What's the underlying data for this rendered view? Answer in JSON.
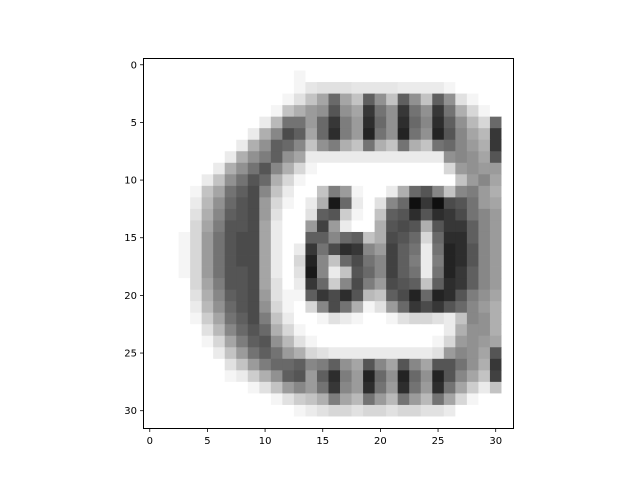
{
  "chart_data": {
    "type": "heatmap",
    "title": "",
    "xlabel": "",
    "ylabel": "",
    "xlim": [
      -0.5,
      31.5
    ],
    "ylim": [
      31.5,
      -0.5
    ],
    "x_ticks": [
      0,
      5,
      10,
      15,
      20,
      25,
      30
    ],
    "y_ticks": [
      0,
      5,
      10,
      15,
      20,
      25,
      30
    ],
    "colormap": "gray_r",
    "value_range": [
      0,
      255
    ],
    "grid": false,
    "values": [
      [
        0,
        0,
        0,
        0,
        0,
        0,
        0,
        0,
        0,
        0,
        0,
        0,
        0,
        0,
        0,
        0,
        0,
        0,
        0,
        0,
        0,
        0,
        0,
        0,
        0,
        0,
        0,
        0,
        0,
        0,
        0,
        0
      ],
      [
        0,
        0,
        0,
        0,
        0,
        0,
        0,
        0,
        0,
        0,
        0,
        0,
        0,
        10,
        0,
        0,
        0,
        0,
        0,
        0,
        0,
        0,
        0,
        0,
        0,
        0,
        0,
        0,
        0,
        0,
        0,
        0
      ],
      [
        0,
        0,
        0,
        0,
        0,
        0,
        0,
        0,
        0,
        0,
        0,
        0,
        0,
        10,
        25,
        30,
        30,
        30,
        25,
        25,
        25,
        25,
        20,
        20,
        20,
        20,
        10,
        0,
        0,
        0,
        0,
        0
      ],
      [
        0,
        0,
        0,
        0,
        0,
        0,
        0,
        0,
        0,
        0,
        0,
        0,
        10,
        30,
        60,
        90,
        150,
        90,
        60,
        160,
        110,
        60,
        160,
        110,
        60,
        160,
        110,
        30,
        10,
        0,
        0,
        0
      ],
      [
        0,
        0,
        0,
        0,
        0,
        0,
        0,
        0,
        0,
        0,
        0,
        10,
        60,
        80,
        100,
        110,
        170,
        110,
        90,
        200,
        140,
        110,
        200,
        140,
        110,
        200,
        140,
        80,
        40,
        10,
        0,
        0
      ],
      [
        0,
        0,
        0,
        0,
        0,
        0,
        0,
        0,
        0,
        0,
        20,
        70,
        140,
        140,
        100,
        150,
        200,
        130,
        100,
        210,
        150,
        110,
        210,
        150,
        120,
        210,
        160,
        110,
        70,
        40,
        150,
        0
      ],
      [
        0,
        0,
        0,
        0,
        0,
        0,
        0,
        0,
        0,
        20,
        80,
        120,
        180,
        160,
        90,
        150,
        210,
        130,
        100,
        220,
        140,
        110,
        220,
        140,
        110,
        220,
        170,
        120,
        90,
        70,
        200,
        0
      ],
      [
        0,
        0,
        0,
        0,
        0,
        0,
        0,
        0,
        20,
        80,
        110,
        160,
        150,
        120,
        60,
        110,
        130,
        80,
        60,
        140,
        80,
        60,
        140,
        80,
        60,
        140,
        150,
        120,
        100,
        80,
        200,
        0
      ],
      [
        0,
        0,
        0,
        0,
        0,
        0,
        0,
        20,
        80,
        110,
        130,
        160,
        110,
        90,
        20,
        20,
        20,
        20,
        20,
        20,
        20,
        20,
        20,
        20,
        20,
        20,
        110,
        120,
        110,
        90,
        170,
        0
      ],
      [
        0,
        0,
        0,
        0,
        0,
        0,
        20,
        80,
        110,
        140,
        170,
        120,
        80,
        40,
        10,
        0,
        0,
        0,
        0,
        0,
        0,
        0,
        0,
        0,
        0,
        0,
        40,
        100,
        110,
        100,
        100,
        0
      ],
      [
        0,
        0,
        0,
        0,
        0,
        20,
        60,
        110,
        140,
        170,
        150,
        80,
        40,
        10,
        0,
        0,
        0,
        0,
        0,
        0,
        0,
        0,
        0,
        0,
        0,
        0,
        0,
        60,
        100,
        120,
        90,
        0
      ],
      [
        0,
        0,
        0,
        0,
        10,
        60,
        90,
        140,
        160,
        180,
        120,
        60,
        20,
        0,
        0,
        60,
        130,
        100,
        10,
        0,
        0,
        20,
        80,
        150,
        170,
        120,
        60,
        120,
        130,
        100,
        80,
        0
      ],
      [
        0,
        0,
        0,
        0,
        20,
        70,
        110,
        150,
        170,
        180,
        100,
        40,
        10,
        0,
        20,
        80,
        230,
        150,
        20,
        0,
        30,
        120,
        150,
        240,
        200,
        240,
        180,
        170,
        140,
        100,
        90,
        0
      ],
      [
        0,
        0,
        0,
        0,
        30,
        80,
        120,
        160,
        170,
        180,
        100,
        30,
        0,
        0,
        30,
        160,
        170,
        50,
        10,
        0,
        60,
        160,
        170,
        210,
        170,
        210,
        200,
        180,
        140,
        120,
        100,
        0
      ],
      [
        0,
        0,
        0,
        0,
        40,
        90,
        130,
        170,
        170,
        180,
        90,
        20,
        0,
        0,
        100,
        190,
        100,
        20,
        0,
        0,
        80,
        170,
        180,
        170,
        80,
        170,
        200,
        200,
        160,
        120,
        100,
        0
      ],
      [
        0,
        0,
        0,
        10,
        40,
        100,
        140,
        170,
        180,
        180,
        90,
        20,
        0,
        0,
        160,
        160,
        120,
        150,
        160,
        60,
        80,
        180,
        170,
        150,
        40,
        150,
        210,
        210,
        160,
        120,
        100,
        0
      ],
      [
        0,
        0,
        0,
        10,
        40,
        100,
        140,
        170,
        180,
        180,
        90,
        20,
        0,
        20,
        200,
        140,
        180,
        210,
        200,
        120,
        100,
        190,
        160,
        140,
        20,
        140,
        220,
        210,
        170,
        120,
        100,
        0
      ],
      [
        0,
        0,
        0,
        10,
        40,
        100,
        140,
        170,
        180,
        180,
        90,
        20,
        0,
        40,
        220,
        120,
        60,
        150,
        180,
        140,
        120,
        190,
        160,
        130,
        20,
        130,
        220,
        210,
        170,
        120,
        100,
        0
      ],
      [
        0,
        0,
        0,
        10,
        40,
        100,
        140,
        170,
        170,
        180,
        90,
        20,
        0,
        30,
        230,
        120,
        20,
        60,
        170,
        150,
        120,
        190,
        160,
        140,
        20,
        140,
        220,
        200,
        160,
        120,
        100,
        0
      ],
      [
        0,
        0,
        0,
        0,
        40,
        90,
        130,
        170,
        170,
        180,
        90,
        30,
        0,
        20,
        200,
        150,
        50,
        120,
        180,
        130,
        100,
        180,
        170,
        160,
        60,
        160,
        210,
        200,
        160,
        120,
        100,
        0
      ],
      [
        0,
        0,
        0,
        0,
        30,
        80,
        120,
        160,
        170,
        180,
        100,
        30,
        10,
        10,
        160,
        200,
        180,
        210,
        170,
        70,
        60,
        160,
        180,
        220,
        150,
        220,
        210,
        170,
        130,
        110,
        90,
        0
      ],
      [
        0,
        0,
        0,
        0,
        20,
        70,
        110,
        150,
        170,
        180,
        110,
        40,
        10,
        0,
        40,
        120,
        180,
        140,
        80,
        10,
        30,
        100,
        150,
        200,
        180,
        200,
        170,
        150,
        120,
        100,
        80,
        0
      ],
      [
        0,
        0,
        0,
        0,
        10,
        50,
        90,
        140,
        160,
        180,
        130,
        60,
        20,
        0,
        0,
        10,
        30,
        20,
        10,
        0,
        0,
        10,
        30,
        40,
        40,
        30,
        20,
        60,
        120,
        110,
        80,
        0
      ],
      [
        0,
        0,
        0,
        0,
        0,
        30,
        70,
        120,
        150,
        170,
        150,
        80,
        40,
        10,
        0,
        0,
        0,
        0,
        0,
        0,
        0,
        0,
        0,
        0,
        0,
        0,
        20,
        80,
        110,
        110,
        80,
        0
      ],
      [
        0,
        0,
        0,
        0,
        0,
        10,
        40,
        90,
        130,
        160,
        170,
        110,
        70,
        30,
        10,
        0,
        0,
        0,
        0,
        0,
        0,
        0,
        0,
        0,
        0,
        10,
        40,
        100,
        110,
        100,
        90,
        0
      ],
      [
        0,
        0,
        0,
        0,
        0,
        0,
        20,
        60,
        100,
        140,
        160,
        140,
        100,
        80,
        40,
        30,
        20,
        20,
        20,
        20,
        20,
        20,
        20,
        20,
        20,
        30,
        100,
        120,
        110,
        90,
        170,
        0
      ],
      [
        0,
        0,
        0,
        0,
        0,
        0,
        0,
        30,
        60,
        100,
        130,
        150,
        150,
        160,
        120,
        130,
        160,
        110,
        90,
        170,
        120,
        90,
        170,
        120,
        90,
        170,
        170,
        140,
        110,
        80,
        200,
        0
      ],
      [
        0,
        0,
        0,
        0,
        0,
        0,
        0,
        10,
        20,
        50,
        80,
        110,
        160,
        170,
        100,
        160,
        210,
        130,
        100,
        220,
        150,
        110,
        220,
        150,
        110,
        220,
        170,
        120,
        90,
        60,
        190,
        0
      ],
      [
        0,
        0,
        0,
        0,
        0,
        0,
        0,
        0,
        0,
        10,
        30,
        60,
        100,
        120,
        100,
        140,
        200,
        120,
        100,
        210,
        140,
        100,
        210,
        140,
        100,
        210,
        140,
        90,
        50,
        20,
        60,
        0
      ],
      [
        0,
        0,
        0,
        0,
        0,
        0,
        0,
        0,
        0,
        0,
        0,
        10,
        30,
        50,
        60,
        80,
        130,
        90,
        70,
        140,
        100,
        70,
        140,
        100,
        70,
        140,
        90,
        40,
        10,
        0,
        0,
        0
      ],
      [
        0,
        0,
        0,
        0,
        0,
        0,
        0,
        0,
        0,
        0,
        0,
        0,
        0,
        10,
        20,
        30,
        40,
        40,
        30,
        40,
        40,
        30,
        40,
        40,
        30,
        30,
        20,
        0,
        0,
        0,
        0,
        0
      ],
      [
        0,
        0,
        0,
        0,
        0,
        0,
        0,
        0,
        0,
        0,
        0,
        0,
        0,
        0,
        0,
        0,
        0,
        0,
        0,
        0,
        0,
        0,
        0,
        0,
        0,
        0,
        0,
        0,
        0,
        0,
        0,
        0
      ]
    ]
  }
}
